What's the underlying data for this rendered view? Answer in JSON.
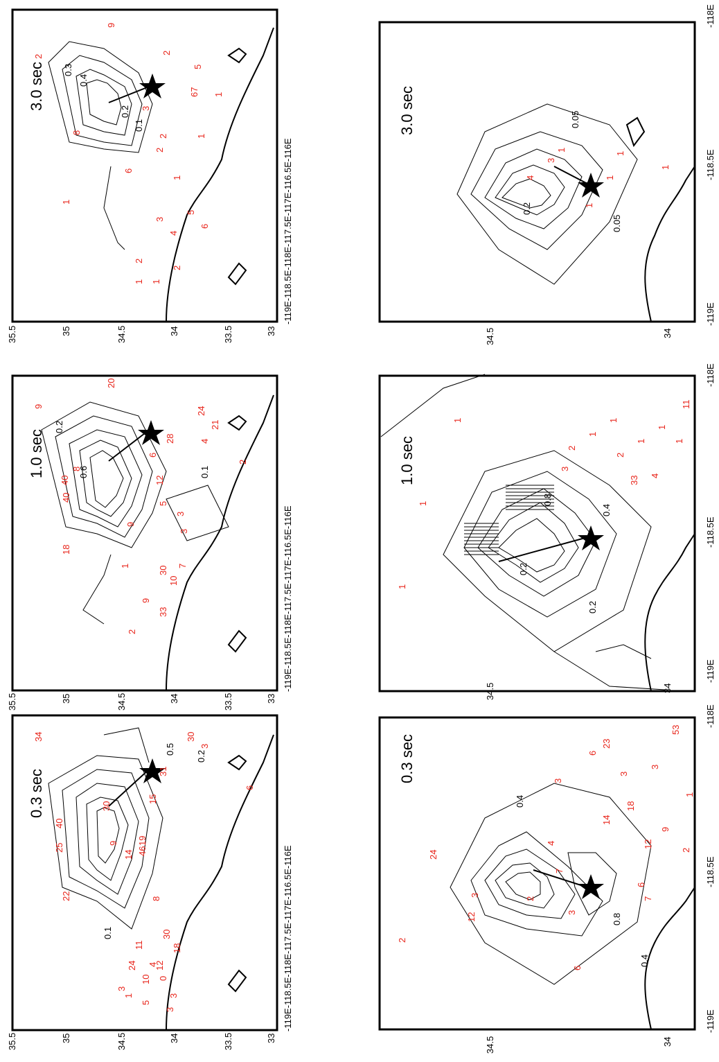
{
  "figure": {
    "description_rotation": "portrait page, plots rotated 90 degrees",
    "colors": {
      "frame": "#000000",
      "contour": "#000000",
      "site_label": "#e8241a",
      "coast": "#000000"
    }
  },
  "panels": [
    {
      "id": "top-0.3",
      "period_label": "0.3 sec",
      "lon_ticks": [
        "-119E",
        "-118.5E",
        "-118E",
        "-117.5E",
        "-117E",
        "-116.5E",
        "-116E"
      ],
      "lat_ticks": [
        "35.5",
        "35",
        "34.5",
        "34",
        "33.5",
        "33"
      ],
      "contour_labels": [
        "0.1",
        "1",
        "0.5",
        "0.2"
      ],
      "site_values": [
        "34",
        "25",
        "40",
        "22",
        "9",
        "30",
        "19",
        "46",
        "14",
        "15",
        "31",
        "3",
        "30",
        "6",
        "8",
        "30",
        "11",
        "18",
        "4",
        "0",
        "1",
        "5",
        "3",
        "24",
        "3",
        "10",
        "12",
        "3"
      ]
    },
    {
      "id": "top-1.0",
      "period_label": "1.0 sec",
      "lon_ticks": [
        "-119E",
        "-118.5E",
        "-118E",
        "-117.5E",
        "-117E",
        "-116.5E",
        "-116E"
      ],
      "lat_ticks": [
        "35.5",
        "35",
        "34.5",
        "34",
        "33.5",
        "33"
      ],
      "contour_labels": [
        "0.2",
        "0.6",
        "0.1"
      ],
      "site_values": [
        "20",
        "9",
        "40",
        "18",
        "12",
        "6",
        "9",
        "40",
        "8",
        "5",
        "3",
        "2",
        "1",
        "7",
        "30",
        "10",
        "9",
        "2",
        "33",
        "24",
        "3",
        "4",
        "28",
        "21"
      ]
    },
    {
      "id": "top-3.0",
      "period_label": "3.0 sec",
      "lon_ticks": [
        "-119E",
        "-118.5E",
        "-118E",
        "-117.5E",
        "-117E",
        "-116.5E",
        "-116E"
      ],
      "lat_ticks": [
        "35.5",
        "35",
        "34.5",
        "34",
        "33.5",
        "33"
      ],
      "contour_labels": [
        "0.4",
        "0.3",
        "0.2",
        "0.1"
      ],
      "site_values": [
        "2",
        "6",
        "8",
        "1",
        "2",
        "5",
        "2",
        "1",
        "9",
        "3",
        "2",
        "1",
        "1",
        "2",
        "3",
        "4",
        "5",
        "6",
        "1",
        "2",
        "67",
        "1"
      ]
    },
    {
      "id": "bottom-0.3",
      "period_label": "0.3 sec",
      "lon_ticks": [
        "-119E",
        "-118.5E",
        "-118E"
      ],
      "lat_ticks": [
        "34.5",
        "34"
      ],
      "contour_labels": [
        "0.4",
        "0.8",
        "0.4"
      ],
      "site_values": [
        "2",
        "24",
        "3",
        "12",
        "6",
        "4",
        "3",
        "2",
        "6",
        "3",
        "7",
        "14",
        "18",
        "1",
        "23",
        "6",
        "3",
        "3",
        "53",
        "9",
        "12",
        "2",
        "7"
      ]
    },
    {
      "id": "bottom-1.0",
      "period_label": "1.0 sec",
      "lon_ticks": [
        "-119E",
        "-118.5E",
        "-118E"
      ],
      "lat_ticks": [
        "34.5",
        "34"
      ],
      "contour_labels": [
        "0.2",
        "0.2",
        "0.4",
        "0.8"
      ],
      "site_values": [
        "1",
        "1",
        "1",
        "3",
        "2",
        "1",
        "1",
        "33",
        "4",
        "2",
        "1",
        "1",
        "1",
        "11"
      ]
    },
    {
      "id": "bottom-3.0",
      "period_label": "3.0 sec",
      "lon_ticks": [
        "-119E",
        "-118.5E",
        "-118E"
      ],
      "lat_ticks": [
        "34.5",
        "34"
      ],
      "contour_labels": [
        "0.05",
        "0.2",
        "0.05"
      ],
      "site_values": [
        "3",
        "1",
        "4",
        "1",
        "1",
        "1",
        "1"
      ]
    }
  ]
}
